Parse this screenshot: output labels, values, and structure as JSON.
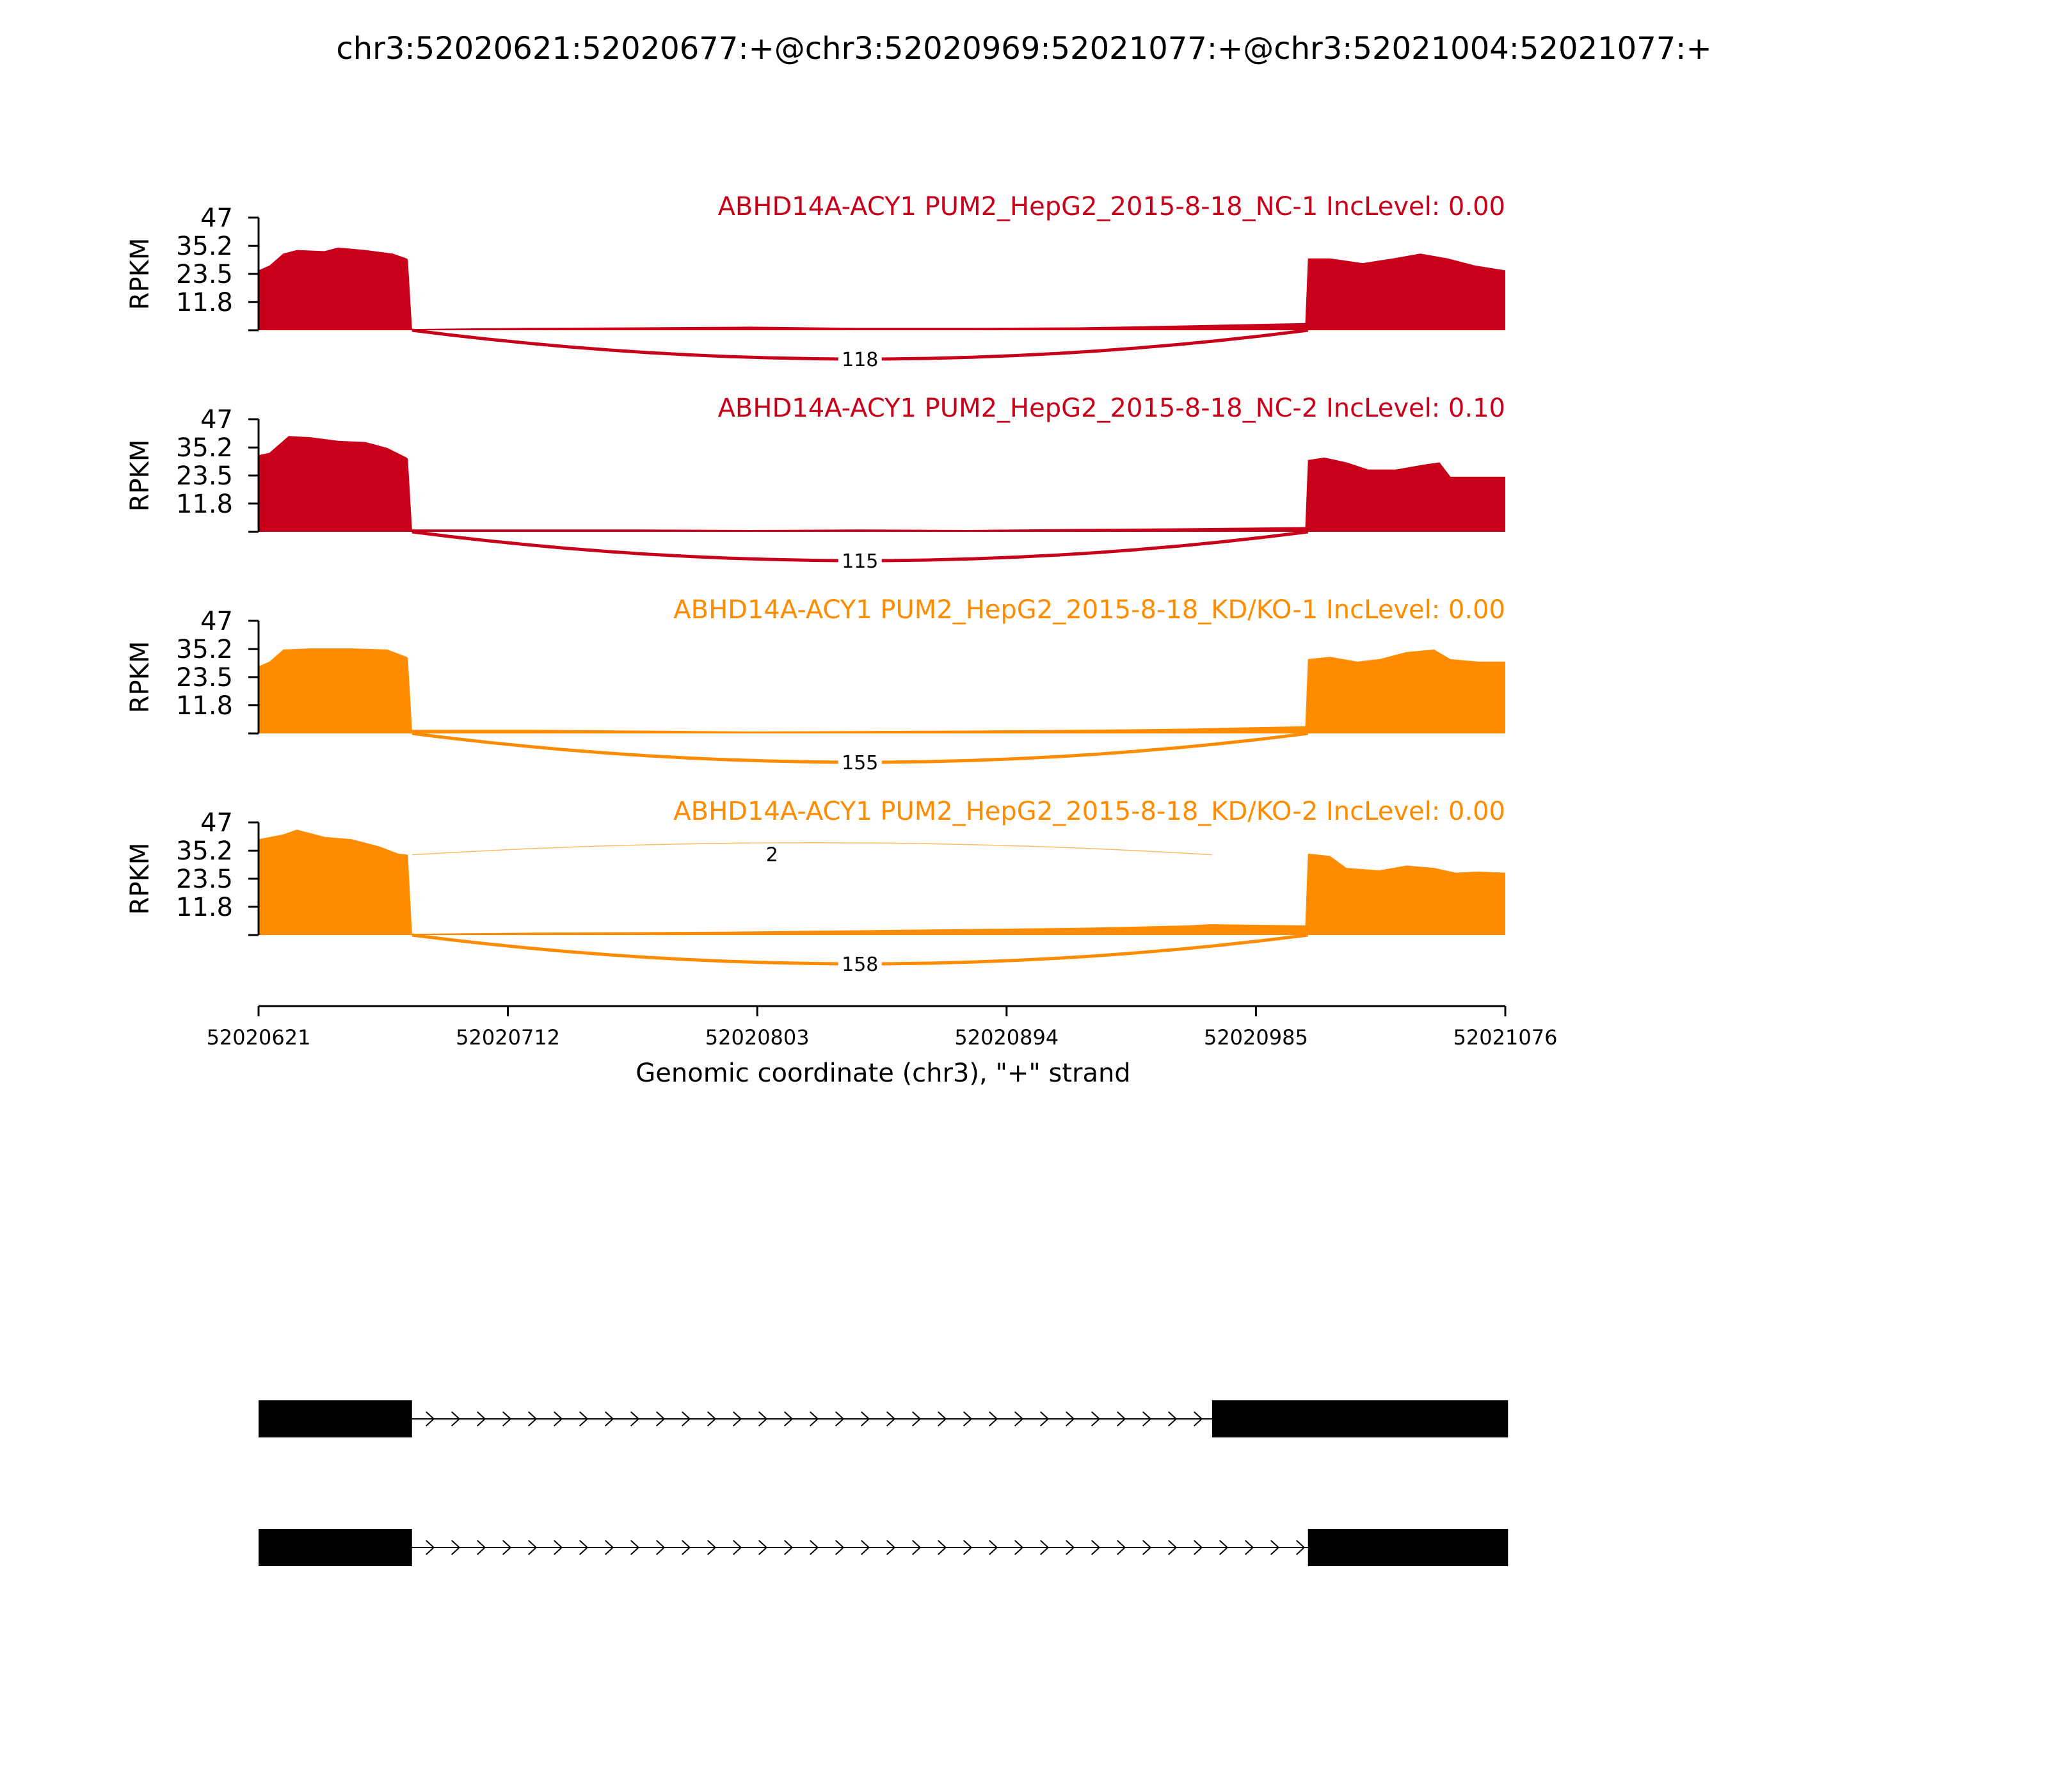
{
  "chart_data": {
    "type": "area",
    "title": "chr3:52020621:52020677:+@chr3:52020969:52021077:+@chr3:52021004:52021077:+",
    "xlabel": "Genomic coordinate (chr3), \"+\" strand",
    "ylabel": "RPKM",
    "xlim": [
      52020621,
      52021076
    ],
    "xticks": [
      "52020621",
      "52020712",
      "52020803",
      "52020894",
      "52020985",
      "52021076"
    ],
    "ylim": [
      0,
      47
    ],
    "yticks": [
      "47",
      "35.2",
      "23.5",
      "11.8"
    ],
    "colors": {
      "NC": "#c8001a",
      "KD": "#ff8c00"
    },
    "tracks": [
      {
        "name": "ABHD14A-ACY1 PUM2_HepG2_2015-8-18_NC-1 IncLevel: 0.00",
        "group": "NC",
        "coverage": [
          [
            52020621,
            25
          ],
          [
            52020625,
            27
          ],
          [
            52020630,
            32
          ],
          [
            52020635,
            33.5
          ],
          [
            52020645,
            33
          ],
          [
            52020650,
            34.5
          ],
          [
            52020660,
            33.5
          ],
          [
            52020670,
            32
          ],
          [
            52020675,
            30
          ],
          [
            52020675.5,
            29.5
          ],
          [
            52020677,
            0.5
          ],
          [
            52020700,
            0.8
          ],
          [
            52020720,
            1.0
          ],
          [
            52020760,
            1.2
          ],
          [
            52020800,
            1.5
          ],
          [
            52020840,
            1.0
          ],
          [
            52020880,
            1.0
          ],
          [
            52020920,
            1.2
          ],
          [
            52020950,
            1.8
          ],
          [
            52020980,
            2.5
          ],
          [
            52021003,
            3
          ],
          [
            52021004,
            30
          ],
          [
            52021012,
            30
          ],
          [
            52021024,
            28
          ],
          [
            52021035,
            30
          ],
          [
            52021045,
            32
          ],
          [
            52021055,
            30
          ],
          [
            52021065,
            27
          ],
          [
            52021076,
            25
          ]
        ],
        "junctions": [
          {
            "from": 52020677,
            "to": 52021004,
            "count": "118"
          }
        ]
      },
      {
        "name": "ABHD14A-ACY1 PUM2_HepG2_2015-8-18_NC-2 IncLevel: 0.10",
        "group": "NC",
        "coverage": [
          [
            52020621,
            32
          ],
          [
            52020625,
            33
          ],
          [
            52020632,
            40
          ],
          [
            52020640,
            39.5
          ],
          [
            52020650,
            38
          ],
          [
            52020660,
            37.5
          ],
          [
            52020668,
            35
          ],
          [
            52020675,
            31
          ],
          [
            52020675.5,
            30.5
          ],
          [
            52020677,
            1.0
          ],
          [
            52020720,
            1.0
          ],
          [
            52020760,
            1.0
          ],
          [
            52020800,
            0.8
          ],
          [
            52020840,
            1.0
          ],
          [
            52020880,
            0.8
          ],
          [
            52020920,
            1.2
          ],
          [
            52020960,
            1.5
          ],
          [
            52021003,
            2
          ],
          [
            52021004,
            30
          ],
          [
            52021010,
            31
          ],
          [
            52021018,
            29
          ],
          [
            52021026,
            26
          ],
          [
            52021036,
            26
          ],
          [
            52021046,
            28
          ],
          [
            52021052,
            29
          ],
          [
            52021056,
            23
          ],
          [
            52021066,
            23
          ],
          [
            52021076,
            23
          ]
        ],
        "junctions": [
          {
            "from": 52020677,
            "to": 52021004,
            "count": "115"
          }
        ]
      },
      {
        "name": "ABHD14A-ACY1 PUM2_HepG2_2015-8-18_KD/KO-1 IncLevel: 0.00",
        "group": "KD",
        "coverage": [
          [
            52020621,
            28
          ],
          [
            52020625,
            30
          ],
          [
            52020630,
            35
          ],
          [
            52020640,
            35.5
          ],
          [
            52020655,
            35.5
          ],
          [
            52020668,
            35
          ],
          [
            52020675,
            32
          ],
          [
            52020675.5,
            31.5
          ],
          [
            52020677,
            1.5
          ],
          [
            52020720,
            1.5
          ],
          [
            52020760,
            1.2
          ],
          [
            52020800,
            0.8
          ],
          [
            52020840,
            1.0
          ],
          [
            52020880,
            1.2
          ],
          [
            52020920,
            1.5
          ],
          [
            52020960,
            2.0
          ],
          [
            52020980,
            2.5
          ],
          [
            52021003,
            3
          ],
          [
            52021004,
            31
          ],
          [
            52021012,
            32
          ],
          [
            52021022,
            30
          ],
          [
            52021030,
            31
          ],
          [
            52021040,
            34
          ],
          [
            52021050,
            35
          ],
          [
            52021056,
            31
          ],
          [
            52021066,
            30
          ],
          [
            52021076,
            30
          ]
        ],
        "junctions": [
          {
            "from": 52020677,
            "to": 52021004,
            "count": "155"
          }
        ]
      },
      {
        "name": "ABHD14A-ACY1 PUM2_HepG2_2015-8-18_KD/KO-2 IncLevel: 0.00",
        "group": "KD",
        "coverage": [
          [
            52020621,
            40
          ],
          [
            52020630,
            42
          ],
          [
            52020635,
            44
          ],
          [
            52020645,
            41
          ],
          [
            52020655,
            40
          ],
          [
            52020665,
            37
          ],
          [
            52020672,
            34
          ],
          [
            52020675.5,
            33.5
          ],
          [
            52020677,
            0.5
          ],
          [
            52020720,
            1.0
          ],
          [
            52020760,
            1.2
          ],
          [
            52020800,
            1.5
          ],
          [
            52020840,
            2.0
          ],
          [
            52020880,
            2.5
          ],
          [
            52020920,
            3.0
          ],
          [
            52020960,
            4.0
          ],
          [
            52020968,
            4.5
          ],
          [
            52020970,
            4.5
          ],
          [
            52021003,
            4.0
          ],
          [
            52021004,
            34
          ],
          [
            52021012,
            33
          ],
          [
            52021018,
            28
          ],
          [
            52021030,
            27
          ],
          [
            52021040,
            29
          ],
          [
            52021050,
            28
          ],
          [
            52021058,
            26
          ],
          [
            52021066,
            26.5
          ],
          [
            52021076,
            26
          ]
        ],
        "junctions": [
          {
            "from": 52020677,
            "to": 52020969,
            "count": "2"
          },
          {
            "from": 52020677,
            "to": 52021004,
            "count": "158"
          }
        ]
      }
    ],
    "isoforms": [
      {
        "exons": [
          [
            52020621,
            52020677
          ],
          [
            52020969,
            52021077
          ]
        ]
      },
      {
        "exons": [
          [
            52020621,
            52020677
          ],
          [
            52021004,
            52021077
          ]
        ]
      }
    ]
  }
}
